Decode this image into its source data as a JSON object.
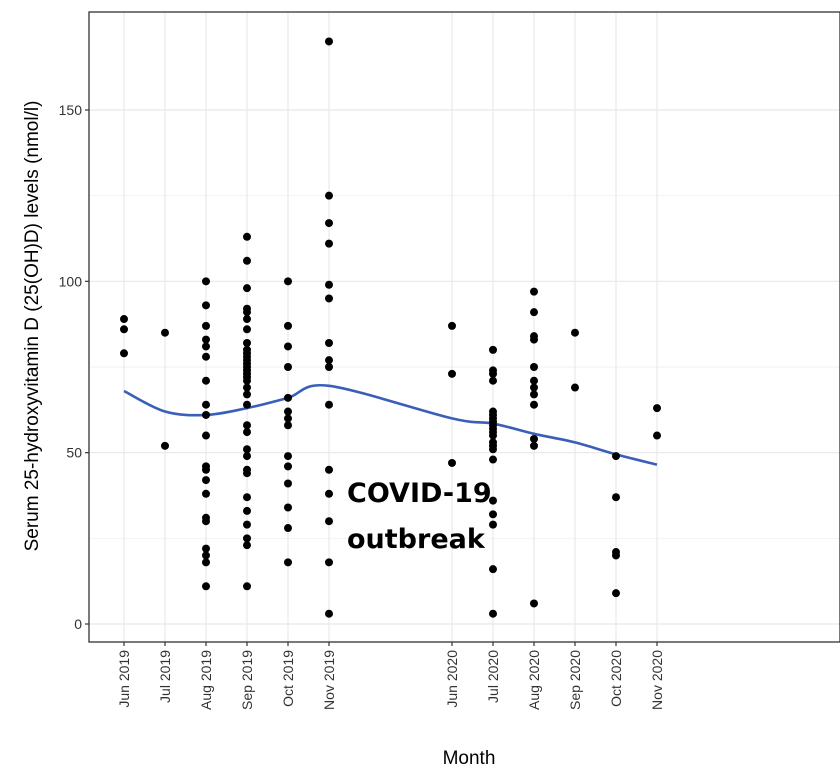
{
  "chart_data": {
    "type": "scatter",
    "title": "",
    "xlabel": "Month",
    "ylabel": "Serum 25-hydroxyvitamin D (25(OH)D) levels (nmol/l)",
    "ylim": [
      -5,
      180
    ],
    "yticks": [
      0,
      50,
      100,
      150
    ],
    "grid": true,
    "legend": "none",
    "categories": [
      "Jun 2019",
      "Jul 2019",
      "Aug 2019",
      "Sep 2019",
      "Oct 2019",
      "Nov 2019",
      "Jun 2020",
      "Jul 2020",
      "Aug 2020",
      "Sep 2020",
      "Oct 2020",
      "Nov 2020"
    ],
    "points": {
      "Jun 2019": [
        89,
        86,
        79
      ],
      "Jul 2019": [
        85,
        52
      ],
      "Aug 2019": [
        100,
        93,
        87,
        83,
        81,
        78,
        71,
        64,
        61,
        55,
        46,
        45,
        42,
        38,
        31,
        30,
        22,
        20,
        18,
        11
      ],
      "Sep 2019": [
        113,
        106,
        98,
        92,
        91,
        89,
        86,
        82,
        80,
        79,
        78,
        77,
        76,
        75,
        74,
        73,
        72,
        71,
        69,
        67,
        64,
        58,
        56,
        51,
        49,
        45,
        44,
        37,
        33,
        29,
        25,
        23,
        11
      ],
      "Oct 2019": [
        100,
        87,
        81,
        75,
        66,
        62,
        60,
        58,
        49,
        46,
        41,
        34,
        28,
        18
      ],
      "Nov 2019": [
        170,
        125,
        117,
        111,
        99,
        95,
        82,
        77,
        75,
        64,
        45,
        38,
        30,
        18,
        3
      ],
      "Jun 2020": [
        87,
        73,
        47
      ],
      "Jul 2020": [
        80,
        74,
        73,
        71,
        62,
        61,
        60,
        59,
        58,
        57,
        56,
        55,
        53,
        52,
        51,
        48,
        36,
        32,
        29,
        16,
        3
      ],
      "Aug 2020": [
        97,
        91,
        84,
        83,
        75,
        71,
        69,
        67,
        64,
        54,
        52,
        6
      ],
      "Sep 2020": [
        85,
        69
      ],
      "Oct 2020": [
        49,
        37,
        21,
        20,
        9
      ],
      "Nov 2020": [
        63,
        55
      ]
    },
    "trend_line": {
      "type": "smooth",
      "x": [
        "Jun 2019",
        "Jul 2019",
        "Aug 2019",
        "Sep 2019",
        "Oct 2019",
        "Nov 2019",
        "Jun 2020",
        "Jul 2020",
        "Aug 2020",
        "Sep 2020",
        "Oct 2020",
        "Nov 2020"
      ],
      "y": [
        68,
        62,
        61,
        63,
        66,
        69.5,
        60,
        58.5,
        55.5,
        53,
        49.5,
        46.5
      ]
    },
    "annotation": [
      "COVID-19",
      "outbreak"
    ],
    "colors": {
      "points": "#000000",
      "trend": "#3A5FB8",
      "grid": "#E8E8E8",
      "panel_border": "#333333"
    }
  }
}
